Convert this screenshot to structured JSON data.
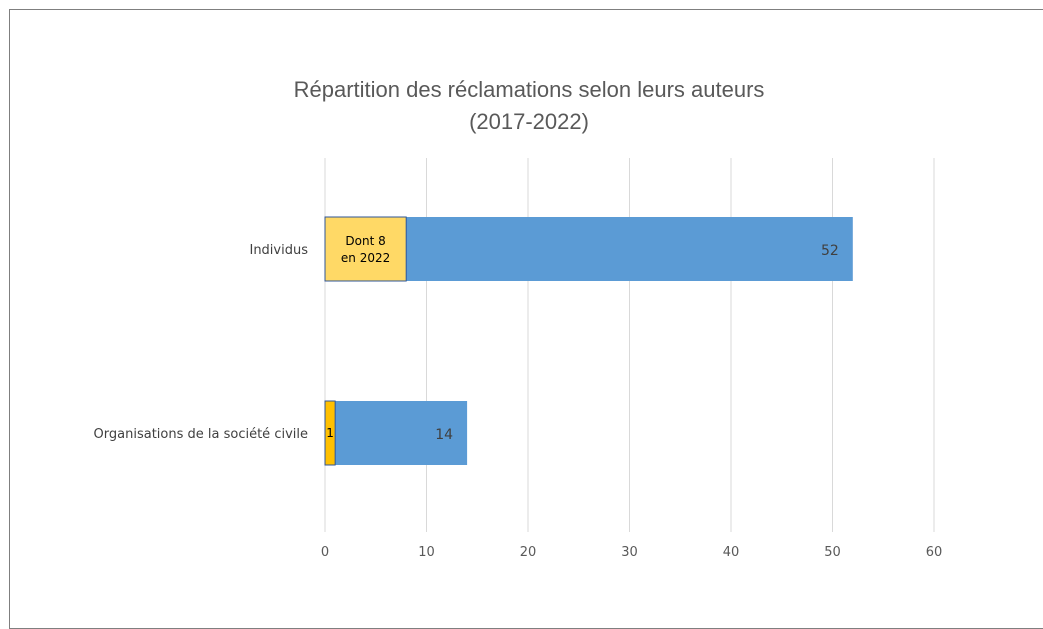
{
  "chart_data": {
    "type": "bar",
    "orientation": "horizontal",
    "stacked": true,
    "title": "Répartition des réclamations selon leurs auteurs",
    "subtitle": "(2017-2022)",
    "categories": [
      "Individus",
      "Organisations de la société civile"
    ],
    "totals": [
      52,
      14
    ],
    "highlight_values": [
      8,
      1
    ],
    "highlight_labels": [
      "Dont 8\nen 2022",
      "1"
    ],
    "total_labels": [
      "52",
      "14"
    ],
    "x_ticks": [
      0,
      10,
      20,
      30,
      40,
      50,
      60
    ],
    "xlim": [
      0,
      60
    ],
    "grid": "vertical",
    "legend": "none",
    "colors": {
      "total": "#5b9bd5",
      "highlight": "#ffd966",
      "highlight_small": "#ffc000",
      "highlight_border": "#2f5597",
      "grid": "#d9d9d9",
      "text": "#595959"
    }
  }
}
